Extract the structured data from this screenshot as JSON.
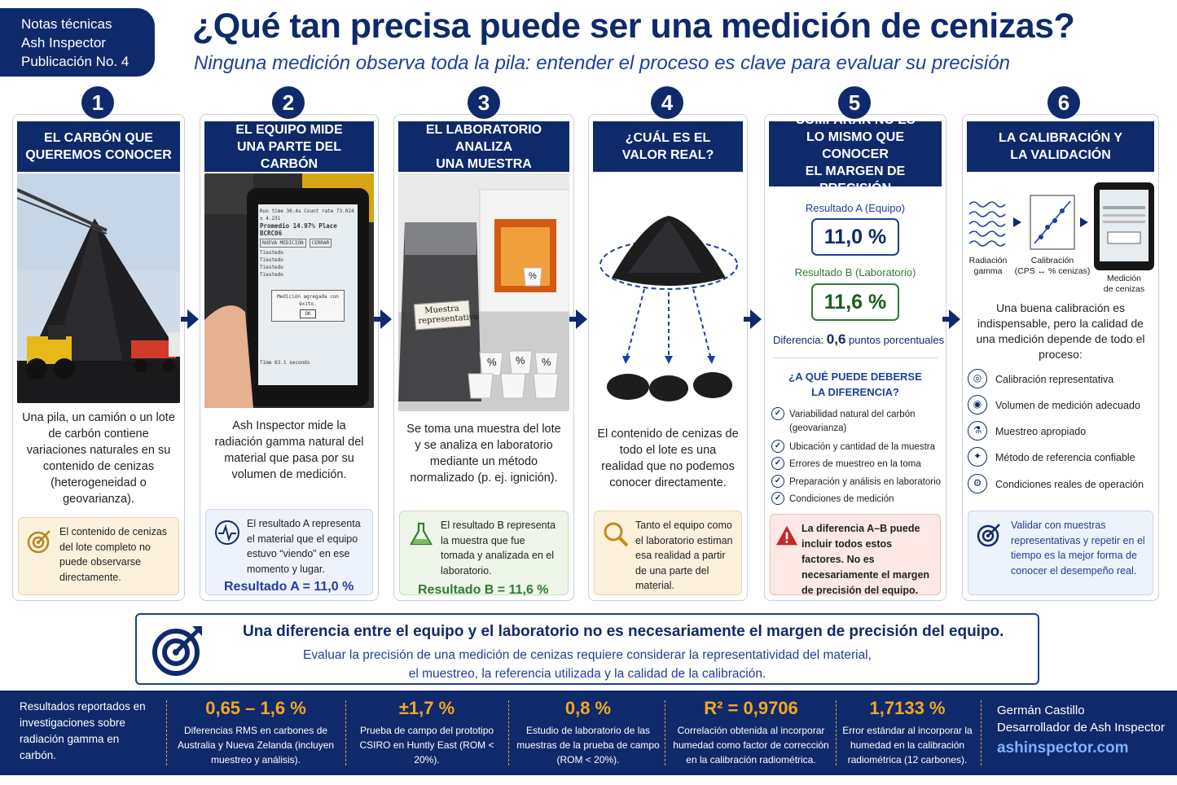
{
  "badge": {
    "line1": "Notas técnicas",
    "line2": "Ash Inspector",
    "line3": "Publicación No. 4"
  },
  "title": "¿Qué tan precisa puede ser una medición de cenizas?",
  "subtitle": "Ninguna medición observa toda la pila: entender el proceso es clave para evaluar su precisión",
  "colors": {
    "navy": "#0f2a6b",
    "accent": "#f5a623",
    "green": "#2e7d32",
    "red": "#c62828",
    "note_tan": "#fbf1dd",
    "note_blue": "#eef2fa",
    "note_green": "#eef6e9",
    "note_red": "#fde8e6"
  },
  "steps": [
    {
      "num": "1",
      "header_l1": "EL CARBÓN QUE",
      "header_l2": "QUEREMOS CONOCER",
      "text": "Una pila, un camión o un lote de carbón contiene variaciones naturales en su contenido de cenizas (heterogeneidad o geovarianza).",
      "note": "El contenido de cenizas del lote completo no puede observarse directamente.",
      "note_icon": "target-icon"
    },
    {
      "num": "2",
      "header_l1": "EL EQUIPO MIDE",
      "header_l2": "UNA PARTE DEL CARBÓN",
      "text": "Ash Inspector mide la radiación gamma natural del material que pasa por su volumen de medición.",
      "note": "El resultado A representa el material que el equipo estuvo “viendo” en ese momento y lugar.",
      "result": "Resultado A = 11,0 %",
      "note_icon": "pulse-icon",
      "screen": {
        "row1": "Run time 30.4s Count rate 73.024 ± 4.231",
        "row2": "Promedio 14.97% Place BCRC06",
        "btn1": "NUEVA MEDICIÓN",
        "btn2": "CERRAR",
        "rows": [
          "Tiestedo",
          "Tiestedo",
          "Tiestedo",
          "Tiestedo"
        ],
        "msg": "Medición agregada con éxito.",
        "ok": "OK",
        "foot": "Time 63.1 seconds"
      }
    },
    {
      "num": "3",
      "header_l1": "EL LABORATORIO ANALIZA",
      "header_l2": "UNA MUESTRA",
      "text": "Se toma una muestra del lote y se analiza en laboratorio mediante un método normalizado (p. ej. ignición).",
      "note": "El resultado B representa la muestra que fue tomada y analizada en el laboratorio.",
      "result": "Resultado B = 11,6 %",
      "note_icon": "flask-icon",
      "bag_label": "Muestra representativa",
      "pct": "%"
    },
    {
      "num": "4",
      "header_l1": "¿CUÁL ES EL",
      "header_l2": "VALOR REAL?",
      "text": "El contenido de cenizas de todo el lote es una realidad que no podemos conocer directamente.",
      "note": "Tanto el equipo como el laboratorio estiman esa realidad a partir de una parte del material.",
      "note_icon": "magnifier-icon"
    },
    {
      "num": "5",
      "header_l1": "COMPARAR NO ES",
      "header_l2": "LO MISMO QUE CONOCER",
      "header_l3": "EL MARGEN DE PRECISIÓN",
      "res_a_label": "Resultado A (Equipo)",
      "res_a": "11,0 %",
      "res_b_label": "Resultado B (Laboratorio)",
      "res_b": "11,6 %",
      "diff_label": "Diferencia:",
      "diff_value": "0,6",
      "diff_unit": "puntos porcentuales",
      "q_l1": "¿A QUÉ PUEDE DEBERSE",
      "q_l2": "LA DIFERENCIA?",
      "checks": [
        "Variabilidad natural del carbón (geovarianza)",
        "Ubicación y cantidad de la muestra",
        "Errores de muestreo en la toma",
        "Preparación y análisis en laboratorio",
        "Condiciones de medición"
      ],
      "note": "La diferencia A–B puede incluir todos estos factores. No es necesariamente el margen de precisión del equipo.",
      "note_icon": "warning-icon"
    },
    {
      "num": "6",
      "header_l1": "LA CALIBRACIÓN Y",
      "header_l2": "LA VALIDACIÓN",
      "flow": {
        "gamma_l1": "Radiación",
        "gamma_l2": "gamma",
        "cal_l1": "Calibración",
        "cal_l2": "(CPS ↔ % cenizas)",
        "med_l1": "Medición",
        "med_l2": "de cenizas"
      },
      "text": "Una buena calibración es indispensable, pero la calidad de una medición depende de todo el proceso:",
      "items": [
        "Calibración representativa",
        "Volumen de medición adecuado",
        "Muestreo apropiado",
        "Método de referencia confiable",
        "Condiciones reales de operación"
      ],
      "note": "Validar con muestras representativas y repetir en el tiempo es la mejor forma de conocer el desempeño real.",
      "note_icon": "target-icon"
    }
  ],
  "banner": {
    "headline": "Una diferencia entre el equipo y el laboratorio no es necesariamente el margen de precisión del equipo.",
    "line1": "Evaluar la precisión de una medición de cenizas requiere considerar la representatividad del material,",
    "line2": "el muestreo, la referencia utilizada y la calidad de la calibración."
  },
  "footer": {
    "intro": "Resultados reportados en investigaciones sobre radiación gamma en carbón.",
    "stats": [
      {
        "value": "0,65 – 1,6 %",
        "desc": "Diferencias RMS en carbones de Australia y Nueva Zelanda (incluyen muestreo y análisis)."
      },
      {
        "value": "±1,7 %",
        "desc": "Prueba de campo del prototipo CSIRO en Huntly East (ROM < 20%)."
      },
      {
        "value": "0,8 %",
        "desc": "Estudio de laboratorio de las muestras de la prueba de campo (ROM < 20%)."
      },
      {
        "value": "R² = 0,9706",
        "desc": "Correlación obtenida al incorporar humedad como factor de corrección en la calibración radiométrica."
      },
      {
        "value": "1,7133 %",
        "desc": "Error estándar al incorporar la humedad en la calibración radiométrica (12 carbones)."
      }
    ],
    "author": "Germán Castillo",
    "role": "Desarrollador de Ash Inspector",
    "site": "ashinspector.com"
  }
}
